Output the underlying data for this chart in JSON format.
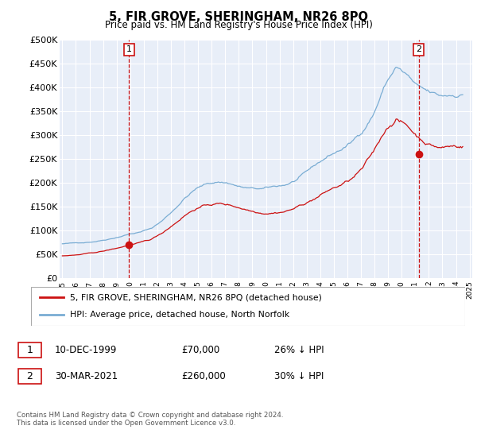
{
  "title": "5, FIR GROVE, SHERINGHAM, NR26 8PQ",
  "subtitle": "Price paid vs. HM Land Registry's House Price Index (HPI)",
  "ylim": [
    0,
    500000
  ],
  "yticks": [
    0,
    50000,
    100000,
    150000,
    200000,
    250000,
    300000,
    350000,
    400000,
    450000,
    500000
  ],
  "ytick_labels": [
    "£0",
    "£50K",
    "£100K",
    "£150K",
    "£200K",
    "£250K",
    "£300K",
    "£350K",
    "£400K",
    "£450K",
    "£500K"
  ],
  "plot_bg_color": "#e8eef8",
  "grid_color": "#ffffff",
  "hpi_color": "#7aadd4",
  "price_color": "#cc1111",
  "vline_color": "#cc1111",
  "marker1_year": 1999.92,
  "marker1_price": 70000,
  "marker2_year": 2021.25,
  "marker2_price": 260000,
  "legend1": "5, FIR GROVE, SHERINGHAM, NR26 8PQ (detached house)",
  "legend2": "HPI: Average price, detached house, North Norfolk",
  "note1_date": "10-DEC-1999",
  "note1_price": "£70,000",
  "note1_hpi": "26% ↓ HPI",
  "note2_date": "30-MAR-2021",
  "note2_price": "£260,000",
  "note2_hpi": "30% ↓ HPI",
  "footer": "Contains HM Land Registry data © Crown copyright and database right 2024.\nThis data is licensed under the Open Government Licence v3.0."
}
